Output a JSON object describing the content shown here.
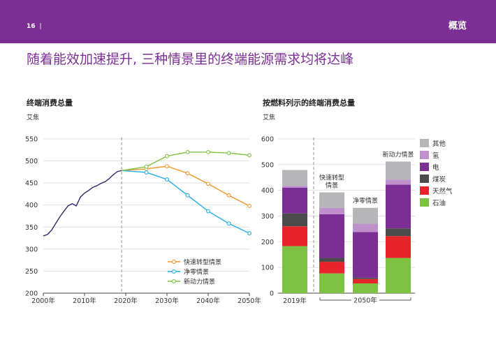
{
  "header": {
    "page_number": "16",
    "separator": "|",
    "section": "概览",
    "accent_color": "#7b2f94"
  },
  "headline": "随着能效加速提升, 三种情景里的终端能源需求均将达峰",
  "left_chart": {
    "title": "终端消费总量",
    "unit": "艾焦"
  },
  "right_chart": {
    "title": "按燃料列示的终端消费总量",
    "unit": "艾焦"
  },
  "chart_data": [
    {
      "type": "line",
      "title": "终端消费总量",
      "ylabel": "艾焦",
      "xlim": [
        2000,
        2050
      ],
      "ylim": [
        200,
        550
      ],
      "x_ticks": [
        2000,
        2010,
        2020,
        2030,
        2040,
        2050
      ],
      "x_tick_labels": [
        "2000年",
        "2010年",
        "2020年",
        "2030年",
        "2040年",
        "2050年"
      ],
      "y_ticks": [
        200,
        250,
        300,
        350,
        400,
        450,
        500,
        550
      ],
      "grid": true,
      "legend_position": "bottom-right",
      "divider_x": 2019,
      "history": {
        "color": "#2e2a6e",
        "x": [
          2000,
          2001,
          2002,
          2003,
          2004,
          2005,
          2006,
          2007,
          2008,
          2009,
          2010,
          2011,
          2012,
          2013,
          2014,
          2015,
          2016,
          2017,
          2018,
          2019
        ],
        "y": [
          330,
          333,
          343,
          358,
          373,
          386,
          398,
          403,
          398,
          418,
          427,
          433,
          440,
          444,
          449,
          453,
          460,
          469,
          476,
          478
        ]
      },
      "series": [
        {
          "name": "快速转型情景",
          "color": "#f0962b",
          "x": [
            2019,
            2025,
            2030,
            2035,
            2040,
            2045,
            2050
          ],
          "y": [
            478,
            482,
            488,
            472,
            448,
            422,
            398
          ]
        },
        {
          "name": "净零情景",
          "color": "#22aee4",
          "x": [
            2019,
            2025,
            2030,
            2035,
            2040,
            2045,
            2050
          ],
          "y": [
            478,
            474,
            458,
            422,
            386,
            358,
            336
          ]
        },
        {
          "name": "新动力情景",
          "color": "#7dc242",
          "x": [
            2019,
            2025,
            2030,
            2035,
            2040,
            2045,
            2050
          ],
          "y": [
            478,
            487,
            511,
            520,
            520,
            518,
            513
          ]
        }
      ]
    },
    {
      "type": "bar",
      "title": "按燃料列示的终端消费总量",
      "ylabel": "艾焦",
      "ylim": [
        0,
        600
      ],
      "y_ticks": [
        0,
        100,
        200,
        300,
        400,
        500,
        600
      ],
      "grid": true,
      "stacked": true,
      "legend_position": "right",
      "categories": [
        "2019年",
        "快速转型情景",
        "净零情景",
        "新动力情景"
      ],
      "group_label": "2050年",
      "fuels": [
        {
          "name": "石油",
          "color": "#7dc242"
        },
        {
          "name": "天然气",
          "color": "#e8242b"
        },
        {
          "name": "煤炭",
          "color": "#4b4b4b"
        },
        {
          "name": "电",
          "color": "#7b2f94"
        },
        {
          "name": "氢",
          "color": "#bf91cc"
        },
        {
          "name": "其他",
          "color": "#b6b6b8"
        }
      ],
      "values": [
        [
          183,
          77,
          38,
          137
        ],
        [
          77,
          45,
          17,
          85
        ],
        [
          50,
          15,
          5,
          30
        ],
        [
          100,
          170,
          178,
          170
        ],
        [
          7,
          25,
          32,
          20
        ],
        [
          62,
          60,
          62,
          70
        ]
      ]
    }
  ]
}
